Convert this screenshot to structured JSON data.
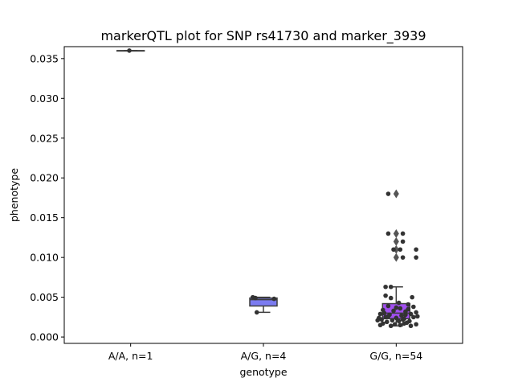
{
  "chart_data": {
    "type": "box",
    "title": "markerQTL plot for SNP rs41730 and marker_3939",
    "xlabel": "genotype",
    "ylabel": "phenotype",
    "ylim": [
      -0.0008,
      0.0365
    ],
    "yticks": [
      "0.000",
      "0.005",
      "0.010",
      "0.015",
      "0.020",
      "0.025",
      "0.030",
      "0.035"
    ],
    "categories": [
      "A/A, n=1",
      "A/G, n=4",
      "G/G, n=54"
    ],
    "box_colors": [
      "#3a6fd8",
      "#7b7bf0",
      "#a24ff0"
    ],
    "boxes": [
      {
        "q1": 0.036,
        "median": 0.036,
        "q3": 0.036,
        "whisker_low": 0.036,
        "whisker_high": 0.036,
        "outliers": []
      },
      {
        "q1": 0.0039,
        "median": 0.0047,
        "q3": 0.0049,
        "whisker_low": 0.0031,
        "whisker_high": 0.005,
        "outliers": []
      },
      {
        "q1": 0.0023,
        "median": 0.003,
        "q3": 0.0042,
        "whisker_low": 0.0014,
        "whisker_high": 0.0063,
        "outliers": [
          0.018,
          0.013,
          0.012,
          0.011,
          0.01
        ]
      }
    ],
    "points": [
      [
        [
          -0.01,
          0.036
        ]
      ],
      [
        [
          -0.08,
          0.005
        ],
        [
          -0.06,
          0.0049
        ],
        [
          0.08,
          0.0048
        ],
        [
          -0.05,
          0.0031
        ]
      ],
      [
        [
          -0.06,
          0.018
        ],
        [
          -0.06,
          0.013
        ],
        [
          0.05,
          0.013
        ],
        [
          0.05,
          0.012
        ],
        [
          -0.02,
          0.011
        ],
        [
          0.03,
          0.011
        ],
        [
          0.15,
          0.011
        ],
        [
          0.05,
          0.01
        ],
        [
          0.15,
          0.01
        ],
        [
          -0.08,
          0.0063
        ],
        [
          -0.04,
          0.0063
        ],
        [
          -0.08,
          0.0052
        ],
        [
          -0.04,
          0.0049
        ],
        [
          0.12,
          0.005
        ],
        [
          0.02,
          0.0043
        ],
        [
          0.09,
          0.0041
        ],
        [
          -0.06,
          0.0039
        ],
        [
          0.03,
          0.0036
        ],
        [
          0.13,
          0.0038
        ],
        [
          -0.1,
          0.0034
        ],
        [
          -0.02,
          0.0033
        ],
        [
          0.07,
          0.0032
        ],
        [
          0.15,
          0.0031
        ],
        [
          -0.12,
          0.0029
        ],
        [
          -0.05,
          0.0028
        ],
        [
          0.04,
          0.0027
        ],
        [
          0.11,
          0.0029
        ],
        [
          0.16,
          0.0026
        ],
        [
          -0.13,
          0.0024
        ],
        [
          -0.08,
          0.0025
        ],
        [
          0.0,
          0.0024
        ],
        [
          0.06,
          0.0023
        ],
        [
          0.13,
          0.0025
        ],
        [
          -0.11,
          0.0022
        ],
        [
          -0.03,
          0.0021
        ],
        [
          0.05,
          0.0022
        ],
        [
          0.1,
          0.002
        ],
        [
          -0.14,
          0.0021
        ],
        [
          -0.07,
          0.0019
        ],
        [
          0.02,
          0.002
        ],
        [
          0.08,
          0.0018
        ],
        [
          -0.1,
          0.0017
        ],
        [
          -0.01,
          0.0016
        ],
        [
          0.06,
          0.0017
        ],
        [
          0.15,
          0.0016
        ],
        [
          -0.12,
          0.0015
        ],
        [
          -0.04,
          0.0014
        ],
        [
          0.03,
          0.0015
        ],
        [
          0.11,
          0.0014
        ],
        [
          -0.06,
          0.0026
        ],
        [
          0.09,
          0.0035
        ],
        [
          -0.09,
          0.003
        ],
        [
          0.0,
          0.0037
        ],
        [
          0.07,
          0.0028
        ]
      ]
    ]
  }
}
